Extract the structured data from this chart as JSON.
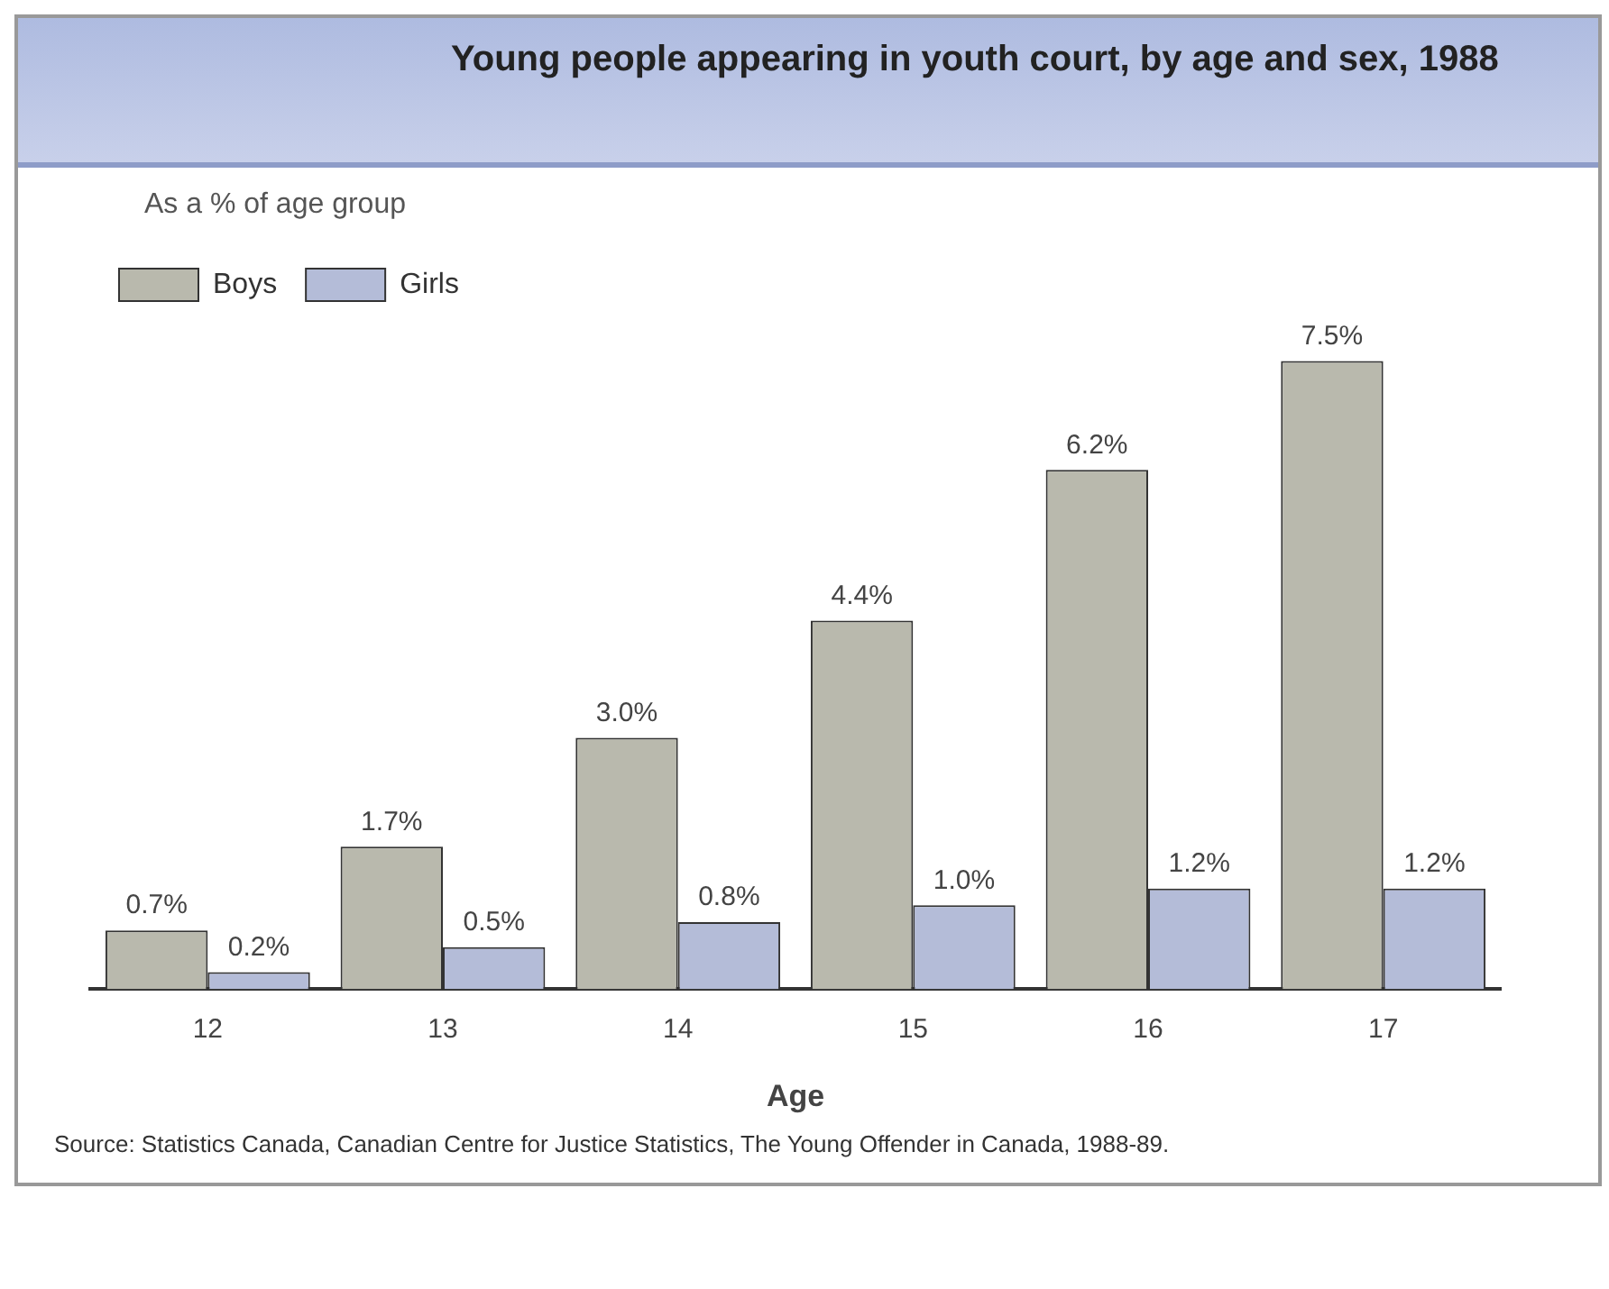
{
  "chart_data": {
    "type": "bar",
    "title": "Young people appearing in youth court, by age and sex, 1988",
    "xlabel": "Age",
    "categories": [
      "12",
      "13",
      "14",
      "15",
      "16",
      "17"
    ],
    "series": [
      {
        "name": "Boys",
        "color": "#b9b9ad",
        "values": [
          0.7,
          1.7,
          3.0,
          4.4,
          6.2,
          7.5
        ],
        "value_labels": [
          "0.7%",
          "1.7%",
          "3.0%",
          "4.4%",
          "6.2%",
          "7.5%"
        ]
      },
      {
        "name": "Girls",
        "color": "#b4bcd8",
        "values": [
          0.2,
          0.5,
          0.8,
          1.0,
          1.2,
          1.2
        ],
        "value_labels": [
          "0.2%",
          "0.5%",
          "0.8%",
          "1.0%",
          "1.2%",
          "1.2%"
        ]
      }
    ],
    "legend": "top left",
    "grid": false,
    "annotations": [
      "As a % of age group",
      "Source: Statistics Canada, Canadian Centre for Justice Statistics, The Young Offender in Canada, 1988-89."
    ]
  }
}
